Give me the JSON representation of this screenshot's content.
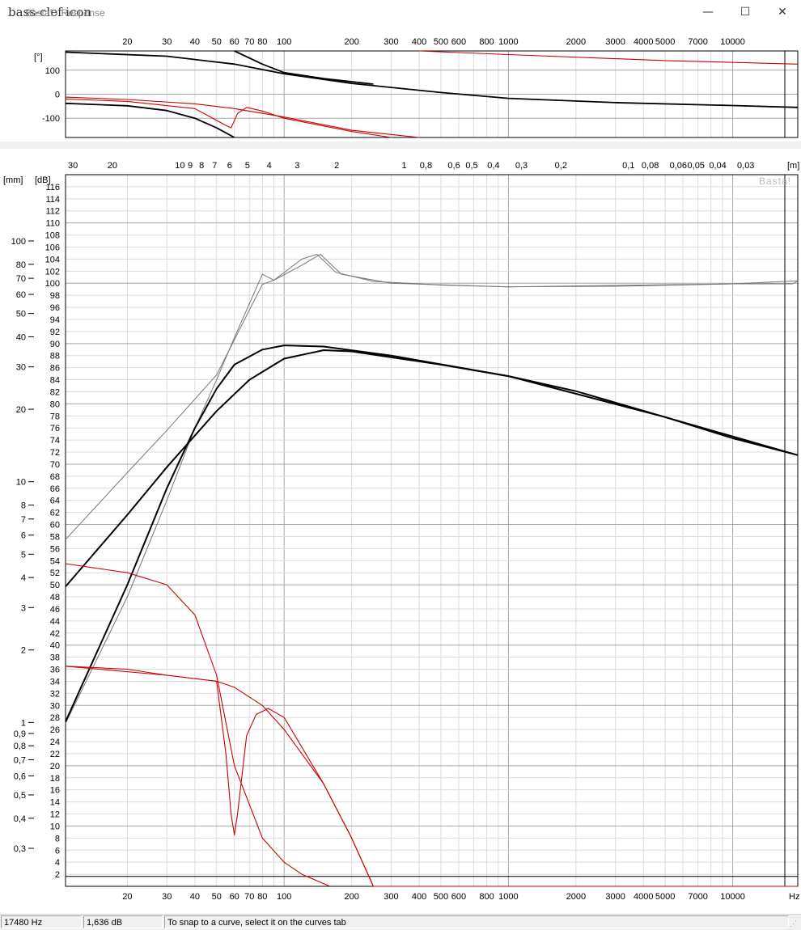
{
  "window": {
    "title": "Basta! - Response",
    "icon": "bass-clef-icon",
    "minimize": "—",
    "maximize": "☐",
    "close": "✕"
  },
  "watermark": "Basta!",
  "phase_chart": {
    "unit_label": "[°]",
    "ymin": -180,
    "ymax": 180,
    "yticks": [
      100,
      0,
      -100
    ],
    "xmin": 10.6,
    "xmax": 19500,
    "xticks": [
      20,
      30,
      40,
      50,
      60,
      70,
      80,
      100,
      200,
      300,
      400,
      500,
      600,
      800,
      1000,
      2000,
      3000,
      4000,
      5000,
      7000,
      10000
    ]
  },
  "main_chart": {
    "left_unit": "[mm]",
    "db_unit": "[dB]",
    "wavelength_unit": "[m]",
    "freq_unit": "Hz",
    "db_min": 0,
    "db_max": 118,
    "db_ticks": [
      2,
      4,
      6,
      8,
      10,
      12,
      14,
      16,
      18,
      20,
      22,
      24,
      26,
      28,
      30,
      32,
      34,
      36,
      38,
      40,
      42,
      44,
      46,
      48,
      50,
      52,
      54,
      56,
      58,
      60,
      62,
      64,
      66,
      68,
      70,
      72,
      74,
      76,
      78,
      80,
      82,
      84,
      86,
      88,
      90,
      92,
      94,
      96,
      98,
      100,
      102,
      104,
      106,
      108,
      110,
      112,
      114,
      116
    ],
    "mm_ticks": [
      {
        "v": 100,
        "l": "100"
      },
      {
        "v": 80,
        "l": "80"
      },
      {
        "v": 70,
        "l": "70"
      },
      {
        "v": 60,
        "l": "60"
      },
      {
        "v": 50,
        "l": "50"
      },
      {
        "v": 40,
        "l": "40"
      },
      {
        "v": 30,
        "l": "30"
      },
      {
        "v": 20,
        "l": "20"
      },
      {
        "v": 10,
        "l": "10"
      },
      {
        "v": 8,
        "l": "8"
      },
      {
        "v": 7,
        "l": "7"
      },
      {
        "v": 6,
        "l": "6"
      },
      {
        "v": 5,
        "l": "5"
      },
      {
        "v": 4,
        "l": "4"
      },
      {
        "v": 3,
        "l": "3"
      },
      {
        "v": 2,
        "l": "2"
      },
      {
        "v": 1,
        "l": "1"
      },
      {
        "v": 0.9,
        "l": "0,9"
      },
      {
        "v": 0.8,
        "l": "0,8"
      },
      {
        "v": 0.7,
        "l": "0,7"
      },
      {
        "v": 0.6,
        "l": "0,6"
      },
      {
        "v": 0.5,
        "l": "0,5"
      },
      {
        "v": 0.4,
        "l": "0,4"
      },
      {
        "v": 0.3,
        "l": "0,3"
      }
    ],
    "wavelength_ticks": [
      {
        "v": 30,
        "l": "30"
      },
      {
        "v": 20,
        "l": "20"
      },
      {
        "v": 10,
        "l": "10"
      },
      {
        "v": 9,
        "l": "9"
      },
      {
        "v": 8,
        "l": "8"
      },
      {
        "v": 7,
        "l": "7"
      },
      {
        "v": 6,
        "l": "6"
      },
      {
        "v": 5,
        "l": "5"
      },
      {
        "v": 4,
        "l": "4"
      },
      {
        "v": 3,
        "l": "3"
      },
      {
        "v": 2,
        "l": "2"
      },
      {
        "v": 1,
        "l": "1"
      },
      {
        "v": 0.8,
        "l": "0,8"
      },
      {
        "v": 0.6,
        "l": "0,6"
      },
      {
        "v": 0.5,
        "l": "0,5"
      },
      {
        "v": 0.4,
        "l": "0,4"
      },
      {
        "v": 0.3,
        "l": "0,3"
      },
      {
        "v": 0.2,
        "l": "0,2"
      },
      {
        "v": 0.1,
        "l": "0,1"
      },
      {
        "v": 0.08,
        "l": "0,08"
      },
      {
        "v": 0.06,
        "l": "0,06"
      },
      {
        "v": 0.05,
        "l": "0,05"
      },
      {
        "v": 0.04,
        "l": "0,04"
      },
      {
        "v": 0.03,
        "l": "0,03"
      }
    ],
    "freq_ticks": [
      20,
      30,
      40,
      50,
      60,
      70,
      80,
      100,
      200,
      300,
      400,
      500,
      600,
      800,
      1000,
      2000,
      3000,
      4000,
      5000,
      7000,
      10000
    ]
  },
  "chart_data": [
    {
      "type": "line",
      "xscale": "log",
      "xlim": [
        10.6,
        19500
      ],
      "ylim": [
        -180,
        180
      ],
      "ylabel": "[°]",
      "grid": true,
      "series": [
        {
          "color": "#000000",
          "width": 1.8,
          "points": [
            [
              10.6,
              175
            ],
            [
              30,
              158
            ],
            [
              60,
              125
            ],
            [
              100,
              85
            ],
            [
              200,
              45
            ],
            [
              500,
              7
            ],
            [
              1000,
              -17
            ],
            [
              3000,
              -35
            ],
            [
              10000,
              -47
            ],
            [
              19500,
              -55
            ]
          ]
        },
        {
          "color": "#000000",
          "width": 1.8,
          "points": [
            [
              60,
              180
            ],
            [
              80,
              125
            ],
            [
              100,
              90
            ],
            [
              150,
              65
            ],
            [
              250,
              42
            ]
          ]
        },
        {
          "color": "#000000",
          "width": 1.8,
          "points": [
            [
              10.6,
              -38
            ],
            [
              20,
              -48
            ],
            [
              30,
              -68
            ],
            [
              40,
              -100
            ],
            [
              50,
              -140
            ],
            [
              60,
              -180
            ]
          ]
        },
        {
          "color": "#cc0000",
          "width": 1.1,
          "points": [
            [
              400,
              180
            ],
            [
              1000,
              165
            ],
            [
              5000,
              140
            ],
            [
              19500,
              125
            ]
          ]
        },
        {
          "color": "#cc0000",
          "width": 1.1,
          "points": [
            [
              10.6,
              -12
            ],
            [
              20,
              -22
            ],
            [
              40,
              -40
            ],
            [
              60,
              -60
            ],
            [
              100,
              -95
            ],
            [
              200,
              -150
            ],
            [
              400,
              -180
            ]
          ]
        },
        {
          "color": "#cc0000",
          "width": 1.1,
          "points": [
            [
              10.6,
              -20
            ],
            [
              20,
              -30
            ],
            [
              40,
              -60
            ],
            [
              55,
              -130
            ],
            [
              58,
              -140
            ],
            [
              62,
              -80
            ],
            [
              68,
              -55
            ],
            [
              80,
              -70
            ],
            [
              100,
              -100
            ],
            [
              200,
              -155
            ],
            [
              300,
              -180
            ]
          ]
        }
      ]
    },
    {
      "type": "line",
      "xscale": "log",
      "xlim": [
        10.6,
        19500
      ],
      "ylim": [
        0,
        118
      ],
      "xlabel": "Hz",
      "ylabel": "[dB]",
      "grid": true,
      "series": [
        {
          "color": "#777777",
          "width": 1,
          "points": [
            [
              10.6,
              57.5
            ],
            [
              20,
              68.6
            ],
            [
              30,
              75.6
            ],
            [
              50,
              84.8
            ],
            [
              80,
              99.8
            ],
            [
              90,
              100.5
            ],
            [
              120,
              104
            ],
            [
              140,
              104.8
            ],
            [
              170,
              101.8
            ],
            [
              250,
              100.3
            ],
            [
              500,
              99.7
            ],
            [
              1000,
              99.4
            ],
            [
              3000,
              99.5
            ],
            [
              10000,
              99.9
            ],
            [
              18500,
              99.9
            ],
            [
              19500,
              100.4
            ]
          ]
        },
        {
          "color": "#777777",
          "width": 1,
          "points": [
            [
              10.6,
              27
            ],
            [
              20,
              48
            ],
            [
              30,
              64
            ],
            [
              40,
              76
            ],
            [
              50,
              84
            ],
            [
              60,
              91
            ],
            [
              80,
              101.5
            ],
            [
              90,
              100.5
            ],
            [
              120,
              103
            ],
            [
              145,
              104.8
            ],
            [
              180,
              101.5
            ],
            [
              300,
              100
            ],
            [
              1000,
              99.4
            ],
            [
              10000,
              99.9
            ],
            [
              19500,
              100.4
            ]
          ]
        },
        {
          "color": "#000000",
          "width": 2,
          "points": [
            [
              10.6,
              49.7
            ],
            [
              20,
              61.6
            ],
            [
              30,
              69.5
            ],
            [
              50,
              78.8
            ],
            [
              70,
              84
            ],
            [
              100,
              87.5
            ],
            [
              150,
              88.9
            ],
            [
              200,
              88.7
            ],
            [
              500,
              86.5
            ],
            [
              1000,
              84.6
            ],
            [
              2000,
              82.1
            ],
            [
              5000,
              77.8
            ],
            [
              10000,
              74.3
            ],
            [
              19500,
              71.5
            ]
          ]
        },
        {
          "color": "#000000",
          "width": 2,
          "points": [
            [
              10.6,
              27.3
            ],
            [
              20,
              50
            ],
            [
              30,
              66
            ],
            [
              40,
              76
            ],
            [
              50,
              82.5
            ],
            [
              60,
              86.5
            ],
            [
              80,
              89
            ],
            [
              100,
              89.7
            ],
            [
              150,
              89.5
            ],
            [
              300,
              88
            ],
            [
              1000,
              84.6
            ],
            [
              5000,
              77.8
            ],
            [
              19500,
              71.5
            ]
          ]
        },
        {
          "color": "#cc0000",
          "width": 1.1,
          "points": [
            [
              10.6,
              53.5
            ],
            [
              20,
              52
            ],
            [
              30,
              50
            ],
            [
              40,
              45
            ],
            [
              50,
              35
            ],
            [
              60,
              20
            ],
            [
              80,
              8
            ],
            [
              100,
              4
            ],
            [
              120,
              2
            ],
            [
              160,
              0
            ]
          ]
        },
        {
          "color": "#cc0000",
          "width": 1.1,
          "points": [
            [
              10.6,
              36.5
            ],
            [
              20,
              36
            ],
            [
              30,
              35
            ],
            [
              50,
              34
            ],
            [
              60,
              33
            ],
            [
              80,
              30
            ],
            [
              100,
              26
            ],
            [
              150,
              17
            ],
            [
              200,
              8
            ],
            [
              250,
              0
            ]
          ]
        },
        {
          "color": "#cc0000",
          "width": 1.1,
          "points": [
            [
              10.6,
              36.5
            ],
            [
              30,
              35
            ],
            [
              50,
              34
            ],
            [
              55,
              22
            ],
            [
              58,
              12
            ],
            [
              60,
              8.5
            ],
            [
              62,
              12
            ],
            [
              68,
              25
            ],
            [
              75,
              28.5
            ],
            [
              85,
              29.5
            ],
            [
              100,
              28
            ],
            [
              150,
              17
            ],
            [
              200,
              8
            ],
            [
              250,
              0
            ]
          ]
        },
        {
          "color": "#cc0000",
          "width": 1.1,
          "points": [
            [
              250,
              0
            ],
            [
              19500,
              0
            ]
          ]
        }
      ]
    }
  ],
  "status": {
    "frequency": "17480 Hz",
    "level": "1,636 dB",
    "hint": "To snap to a curve, select it on the curves tab"
  }
}
